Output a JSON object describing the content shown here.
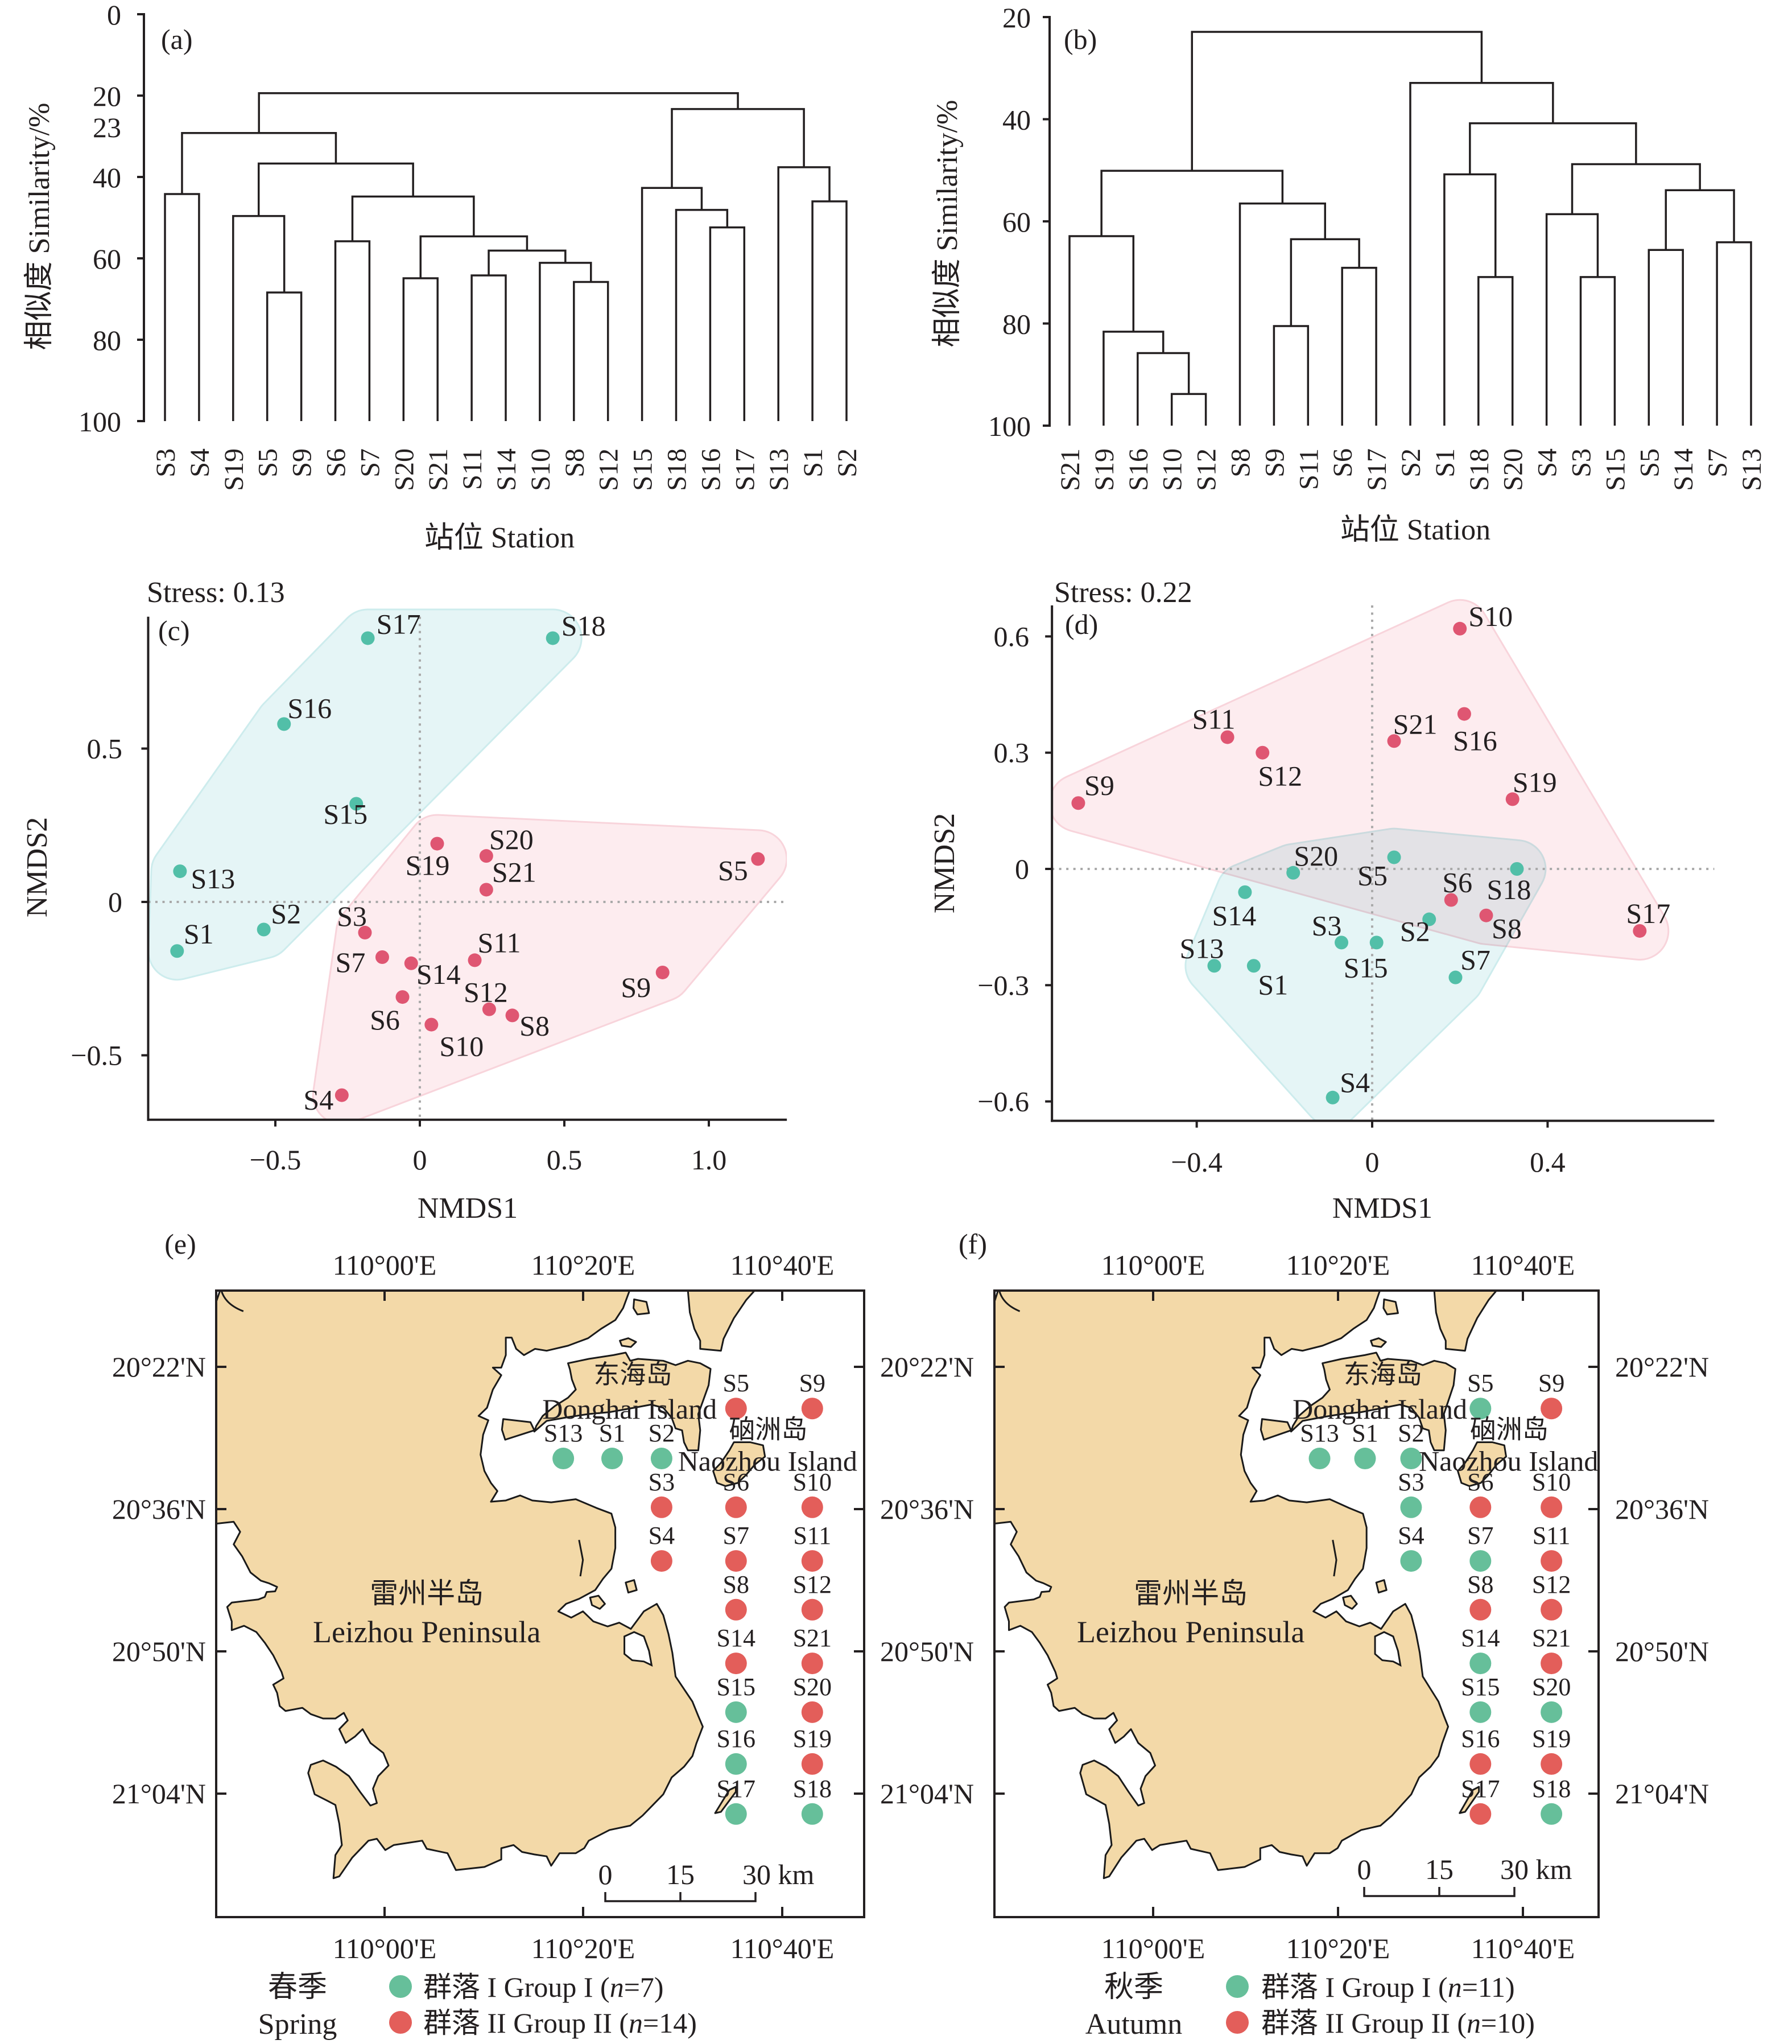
{
  "chart_data": [
    {
      "panel": "(a)",
      "type": "dendrogram",
      "season": "Spring",
      "ylabel": "相似度 Similarity/%",
      "xlabel": "站位 Station",
      "ylim": [
        0,
        100
      ],
      "yticks": [
        0,
        20,
        40,
        60,
        80,
        100
      ],
      "extra_ytick_label": "23",
      "leaf_order": [
        "S3",
        "S4",
        "S19",
        "S5",
        "S9",
        "S6",
        "S7",
        "S20",
        "S21",
        "S11",
        "S14",
        "S10",
        "S8",
        "S12",
        "S15",
        "S18",
        "S16",
        "S17",
        "S13",
        "S1",
        "S2"
      ],
      "group_I": [
        "S15",
        "S18",
        "S16",
        "S17",
        "S13",
        "S1",
        "S2"
      ],
      "tree": {
        "similarity": 19.4,
        "children": [
          {
            "similarity": 29.2,
            "children": [
              {
                "similarity": 44.2,
                "children": [
                  "S3",
                  "S4"
                ]
              },
              {
                "similarity": 36.7,
                "children": [
                  {
                    "similarity": 49.6,
                    "children": [
                      "S19",
                      {
                        "similarity": 68.4,
                        "children": [
                          "S5",
                          "S9"
                        ]
                      }
                    ]
                  },
                  {
                    "similarity": 44.8,
                    "children": [
                      {
                        "similarity": 55.8,
                        "children": [
                          "S6",
                          "S7"
                        ]
                      },
                      {
                        "similarity": 54.6,
                        "children": [
                          {
                            "similarity": 64.9,
                            "children": [
                              "S20",
                              "S21"
                            ]
                          },
                          {
                            "similarity": 58.1,
                            "children": [
                              {
                                "similarity": 64.2,
                                "children": [
                                  "S11",
                                  "S14"
                                ]
                              },
                              {
                                "similarity": 61.1,
                                "children": [
                                  "S10",
                                  {
                                    "similarity": 65.8,
                                    "children": [
                                      "S8",
                                      "S12"
                                    ]
                                  }
                                ]
                              }
                            ]
                          }
                        ]
                      }
                    ]
                  }
                ]
              }
            ]
          },
          {
            "similarity": 23.3,
            "children": [
              {
                "similarity": 42.7,
                "children": [
                  "S15",
                  {
                    "similarity": 48.1,
                    "children": [
                      "S18",
                      {
                        "similarity": 52.4,
                        "children": [
                          "S16",
                          "S17"
                        ]
                      }
                    ]
                  }
                ]
              },
              {
                "similarity": 37.6,
                "children": [
                  "S13",
                  {
                    "similarity": 46.0,
                    "children": [
                      "S1",
                      "S2"
                    ]
                  }
                ]
              }
            ]
          }
        ]
      }
    },
    {
      "panel": "(b)",
      "type": "dendrogram",
      "season": "Autumn",
      "ylabel": "相似度 Similarity/%",
      "xlabel": "站位 Station",
      "ylim": [
        20,
        100
      ],
      "yticks": [
        20,
        40,
        60,
        80,
        100
      ],
      "leaf_order": [
        "S21",
        "S19",
        "S16",
        "S10",
        "S12",
        "S8",
        "S9",
        "S11",
        "S6",
        "S17",
        "S2",
        "S1",
        "S18",
        "S20",
        "S4",
        "S3",
        "S15",
        "S5",
        "S14",
        "S7",
        "S13"
      ],
      "group_I": [
        "S2",
        "S1",
        "S18",
        "S20",
        "S4",
        "S3",
        "S15",
        "S5",
        "S14",
        "S7",
        "S13"
      ],
      "tree": {
        "similarity": 22.9,
        "children": [
          {
            "similarity": 50.1,
            "children": [
              {
                "similarity": 62.9,
                "children": [
                  "S21",
                  {
                    "similarity": 81.6,
                    "children": [
                      "S19",
                      {
                        "similarity": 85.8,
                        "children": [
                          "S16",
                          {
                            "similarity": 93.8,
                            "children": [
                              "S10",
                              "S12"
                            ]
                          }
                        ]
                      }
                    ]
                  }
                ]
              },
              {
                "similarity": 56.5,
                "children": [
                  "S8",
                  {
                    "similarity": 63.5,
                    "children": [
                      {
                        "similarity": 80.5,
                        "children": [
                          "S9",
                          "S11"
                        ]
                      },
                      {
                        "similarity": 69.1,
                        "children": [
                          "S6",
                          "S17"
                        ]
                      }
                    ]
                  }
                ]
              }
            ]
          },
          {
            "similarity": 32.9,
            "children": [
              "S2",
              {
                "similarity": 40.8,
                "children": [
                  {
                    "similarity": 50.8,
                    "children": [
                      "S1",
                      {
                        "similarity": 70.9,
                        "children": [
                          "S18",
                          "S20"
                        ]
                      }
                    ]
                  },
                  {
                    "similarity": 48.8,
                    "children": [
                      {
                        "similarity": 58.6,
                        "children": [
                          "S4",
                          {
                            "similarity": 70.9,
                            "children": [
                              "S3",
                              "S15"
                            ]
                          }
                        ]
                      },
                      {
                        "similarity": 53.9,
                        "children": [
                          {
                            "similarity": 65.6,
                            "children": [
                              "S5",
                              "S14"
                            ]
                          },
                          {
                            "similarity": 64.1,
                            "children": [
                              "S7",
                              "S13"
                            ]
                          }
                        ]
                      }
                    ]
                  }
                ]
              }
            ]
          }
        ]
      }
    },
    {
      "panel": "(c)",
      "type": "scatter",
      "season": "Spring",
      "annotation": "Stress: 0.13",
      "xlabel": "NMDS1",
      "ylabel": "NMDS2",
      "xlim": [
        -0.94,
        1.27
      ],
      "ylim": [
        -0.71,
        0.93
      ],
      "xticks": [
        -0.5,
        0,
        0.5,
        1.0
      ],
      "xtick_labels": [
        "−0.5",
        "0",
        "0.5",
        "1.0"
      ],
      "yticks": [
        -0.5,
        0,
        0.5
      ],
      "ytick_labels": [
        "−0.5",
        "0",
        "0.5"
      ],
      "reference_lines": {
        "x": 0,
        "y": 0
      },
      "series": [
        {
          "name": "Group I",
          "group": "I",
          "points": [
            {
              "id": "S17",
              "x": -0.18,
              "y": 0.86
            },
            {
              "id": "S18",
              "x": 0.46,
              "y": 0.86
            },
            {
              "id": "S16",
              "x": -0.47,
              "y": 0.58
            },
            {
              "id": "S15",
              "x": -0.22,
              "y": 0.32
            },
            {
              "id": "S13",
              "x": -0.83,
              "y": 0.1
            },
            {
              "id": "S2",
              "x": -0.54,
              "y": -0.09
            },
            {
              "id": "S1",
              "x": -0.84,
              "y": -0.16
            }
          ]
        },
        {
          "name": "Group II",
          "group": "II",
          "points": [
            {
              "id": "S19",
              "x": 0.06,
              "y": 0.19
            },
            {
              "id": "S20",
              "x": 0.23,
              "y": 0.15
            },
            {
              "id": "S21",
              "x": 0.23,
              "y": 0.04
            },
            {
              "id": "S5",
              "x": 1.17,
              "y": 0.14
            },
            {
              "id": "S3",
              "x": -0.19,
              "y": -0.1
            },
            {
              "id": "S7",
              "x": -0.13,
              "y": -0.18
            },
            {
              "id": "S14",
              "x": -0.03,
              "y": -0.2
            },
            {
              "id": "S11",
              "x": 0.19,
              "y": -0.19
            },
            {
              "id": "S9",
              "x": 0.84,
              "y": -0.23
            },
            {
              "id": "S6",
              "x": -0.06,
              "y": -0.31
            },
            {
              "id": "S12",
              "x": 0.24,
              "y": -0.35
            },
            {
              "id": "S8",
              "x": 0.32,
              "y": -0.37
            },
            {
              "id": "S10",
              "x": 0.04,
              "y": -0.4
            },
            {
              "id": "S4",
              "x": -0.27,
              "y": -0.63
            }
          ]
        }
      ]
    },
    {
      "panel": "(d)",
      "type": "scatter",
      "season": "Autumn",
      "annotation": "Stress: 0.22",
      "xlabel": "NMDS1",
      "ylabel": "NMDS2",
      "xlim": [
        -0.73,
        0.78
      ],
      "ylim": [
        -0.65,
        0.68
      ],
      "xticks": [
        -0.4,
        0,
        0.4
      ],
      "xtick_labels": [
        "−0.4",
        "0",
        "0.4"
      ],
      "yticks": [
        -0.6,
        -0.3,
        0,
        0.3,
        0.6
      ],
      "ytick_labels": [
        "−0.6",
        "−0.3",
        "0",
        "0.3",
        "0.6"
      ],
      "reference_lines": {
        "x": 0,
        "y": 0
      },
      "series": [
        {
          "name": "Group II",
          "group": "II",
          "points": [
            {
              "id": "S10",
              "x": 0.2,
              "y": 0.62
            },
            {
              "id": "S16",
              "x": 0.21,
              "y": 0.4
            },
            {
              "id": "S11",
              "x": -0.33,
              "y": 0.34
            },
            {
              "id": "S12",
              "x": -0.25,
              "y": 0.3
            },
            {
              "id": "S21",
              "x": 0.05,
              "y": 0.33
            },
            {
              "id": "S9",
              "x": -0.67,
              "y": 0.17
            },
            {
              "id": "S19",
              "x": 0.32,
              "y": 0.18
            },
            {
              "id": "S6",
              "x": 0.18,
              "y": -0.08
            },
            {
              "id": "S8",
              "x": 0.26,
              "y": -0.12
            },
            {
              "id": "S17",
              "x": 0.61,
              "y": -0.16
            }
          ]
        },
        {
          "name": "Group I",
          "group": "I",
          "points": [
            {
              "id": "S5",
              "x": 0.05,
              "y": 0.03
            },
            {
              "id": "S18",
              "x": 0.33,
              "y": 0.0
            },
            {
              "id": "S20",
              "x": -0.18,
              "y": -0.01
            },
            {
              "id": "S14",
              "x": -0.29,
              "y": -0.06
            },
            {
              "id": "S2",
              "x": 0.13,
              "y": -0.13
            },
            {
              "id": "S3",
              "x": -0.07,
              "y": -0.19
            },
            {
              "id": "S15",
              "x": 0.01,
              "y": -0.19
            },
            {
              "id": "S13",
              "x": -0.36,
              "y": -0.25
            },
            {
              "id": "S1",
              "x": -0.27,
              "y": -0.25
            },
            {
              "id": "S7",
              "x": 0.19,
              "y": -0.28
            },
            {
              "id": "S4",
              "x": -0.09,
              "y": -0.59
            }
          ]
        }
      ]
    }
  ],
  "maps": [
    {
      "panel": "(e)",
      "type": "map",
      "season_cn": "春季",
      "season_en": "Spring",
      "lon_ticks": [
        110.0,
        110.3333,
        110.6667
      ],
      "lon_tick_labels": [
        "110°00'E",
        "110°20'E",
        "110°40'E"
      ],
      "lat_ticks": [
        20.3667,
        20.6,
        20.8333,
        21.0667
      ],
      "lat_tick_labels": [
        "20°22'N",
        "20°36'N",
        "20°50'N",
        "21°04'N"
      ],
      "place_labels": {
        "donghai_cn": "东海岛",
        "donghai_en": "Donghai Island",
        "naozhou_cn": "硇洲岛",
        "naozhou_en": "Naozhou Island",
        "leizhou_cn": "雷州半岛",
        "leizhou_en": "Leizhou Peninsula"
      },
      "scale_bar_labels": [
        "0",
        "15",
        "30 km"
      ],
      "legend": [
        {
          "group": "I",
          "label": "群落 I Group I",
          "n_symbol": "n",
          "n": 7
        },
        {
          "group": "II",
          "label": "群落 II Group II",
          "n_symbol": "n",
          "n": 14
        }
      ],
      "group_I_stations": [
        "S1",
        "S2",
        "S13",
        "S15",
        "S16",
        "S17",
        "S18"
      ]
    },
    {
      "panel": "(f)",
      "type": "map",
      "season_cn": "秋季",
      "season_en": "Autumn",
      "lon_ticks": [
        110.0,
        110.3333,
        110.6667
      ],
      "lon_tick_labels": [
        "110°00'E",
        "110°20'E",
        "110°40'E"
      ],
      "lat_ticks": [
        20.3667,
        20.6,
        20.8333,
        21.0667
      ],
      "lat_tick_labels": [
        "20°22'N",
        "20°36'N",
        "20°50'N",
        "21°04'N"
      ],
      "place_labels": {
        "donghai_cn": "东海岛",
        "donghai_en": "Donghai Island",
        "naozhou_cn": "硇洲岛",
        "naozhou_en": "Naozhou Island",
        "leizhou_cn": "雷州半岛",
        "leizhou_en": "Leizhou Peninsula"
      },
      "scale_bar_labels": [
        "0",
        "15",
        "30 km"
      ],
      "legend": [
        {
          "group": "I",
          "label": "群落 I Group I",
          "n_symbol": "n",
          "n": 11
        },
        {
          "group": "II",
          "label": "群落 II Group II",
          "n_symbol": "n",
          "n": 10
        }
      ],
      "group_I_stations": [
        "S1",
        "S2",
        "S3",
        "S4",
        "S5",
        "S7",
        "S13",
        "S14",
        "S15",
        "S18",
        "S20"
      ]
    }
  ],
  "stations": [
    {
      "id": "S1",
      "lon": 110.382,
      "lat": 20.517
    },
    {
      "id": "S2",
      "lon": 110.465,
      "lat": 20.517
    },
    {
      "id": "S3",
      "lon": 110.465,
      "lat": 20.597
    },
    {
      "id": "S4",
      "lon": 110.465,
      "lat": 20.685
    },
    {
      "id": "S5",
      "lon": 110.59,
      "lat": 20.435
    },
    {
      "id": "S6",
      "lon": 110.59,
      "lat": 20.597
    },
    {
      "id": "S7",
      "lon": 110.59,
      "lat": 20.685
    },
    {
      "id": "S8",
      "lon": 110.59,
      "lat": 20.765
    },
    {
      "id": "S9",
      "lon": 110.718,
      "lat": 20.435
    },
    {
      "id": "S10",
      "lon": 110.718,
      "lat": 20.597
    },
    {
      "id": "S11",
      "lon": 110.718,
      "lat": 20.685
    },
    {
      "id": "S12",
      "lon": 110.718,
      "lat": 20.765
    },
    {
      "id": "S13",
      "lon": 110.3,
      "lat": 20.517
    },
    {
      "id": "S14",
      "lon": 110.59,
      "lat": 20.853
    },
    {
      "id": "S15",
      "lon": 110.59,
      "lat": 20.933
    },
    {
      "id": "S16",
      "lon": 110.59,
      "lat": 21.018
    },
    {
      "id": "S17",
      "lon": 110.59,
      "lat": 21.1
    },
    {
      "id": "S18",
      "lon": 110.718,
      "lat": 21.1
    },
    {
      "id": "S19",
      "lon": 110.718,
      "lat": 21.018
    },
    {
      "id": "S20",
      "lon": 110.718,
      "lat": 20.933
    },
    {
      "id": "S21",
      "lon": 110.718,
      "lat": 20.853
    }
  ],
  "colors": {
    "dendrogram_label": {
      "I": "#72c49c",
      "II": "#d52b46"
    },
    "nmds_point": {
      "I": "#52bfa8",
      "II": "#df5672"
    },
    "nmds_label": {
      "I": "#45b8ab",
      "II": "#e0566b"
    },
    "nmds_hull": {
      "I": "#e5f5f6",
      "II": "#fdecef"
    },
    "nmds_hull_edge": {
      "I": "#cdeced",
      "II": "#f8d4db"
    },
    "map_dot": {
      "I": "#66bf9a",
      "II": "#e35e5a"
    },
    "land": "#f3d9a8"
  }
}
